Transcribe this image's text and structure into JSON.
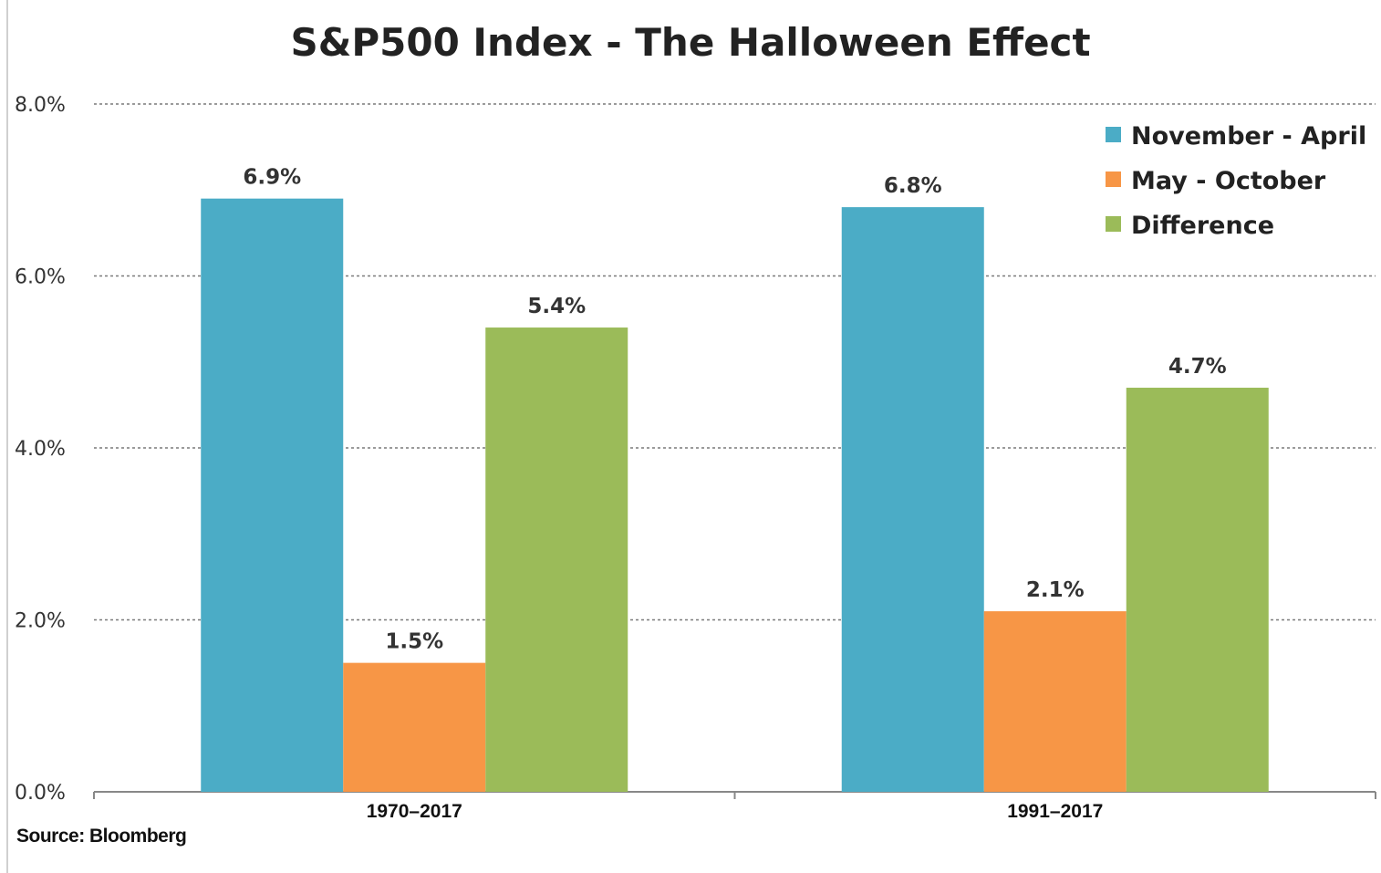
{
  "chart_data": {
    "type": "bar",
    "title": "S&P500 Index - The Halloween Effect",
    "categories": [
      "1970–2017",
      "1991–2017"
    ],
    "series": [
      {
        "name": "November - April",
        "values": [
          6.9,
          6.8
        ],
        "labels": [
          "6.9%",
          "6.8%"
        ],
        "color": "#4BACC6"
      },
      {
        "name": "May - October",
        "values": [
          1.5,
          2.1
        ],
        "labels": [
          "1.5%",
          "2.1%"
        ],
        "color": "#F79646"
      },
      {
        "name": "Difference",
        "values": [
          5.4,
          4.7
        ],
        "labels": [
          "5.4%",
          "4.7%"
        ],
        "color": "#9BBB59"
      }
    ],
    "y_ticks": [
      {
        "value": 0,
        "label": "0.0%"
      },
      {
        "value": 2,
        "label": "2.0%"
      },
      {
        "value": 4,
        "label": "4.0%"
      },
      {
        "value": 6,
        "label": "6.0%"
      },
      {
        "value": 8,
        "label": "8.0%"
      }
    ],
    "ylim": [
      0,
      8
    ],
    "grid": true,
    "legend_position": "top-right",
    "source": "Source: Bloomberg"
  }
}
